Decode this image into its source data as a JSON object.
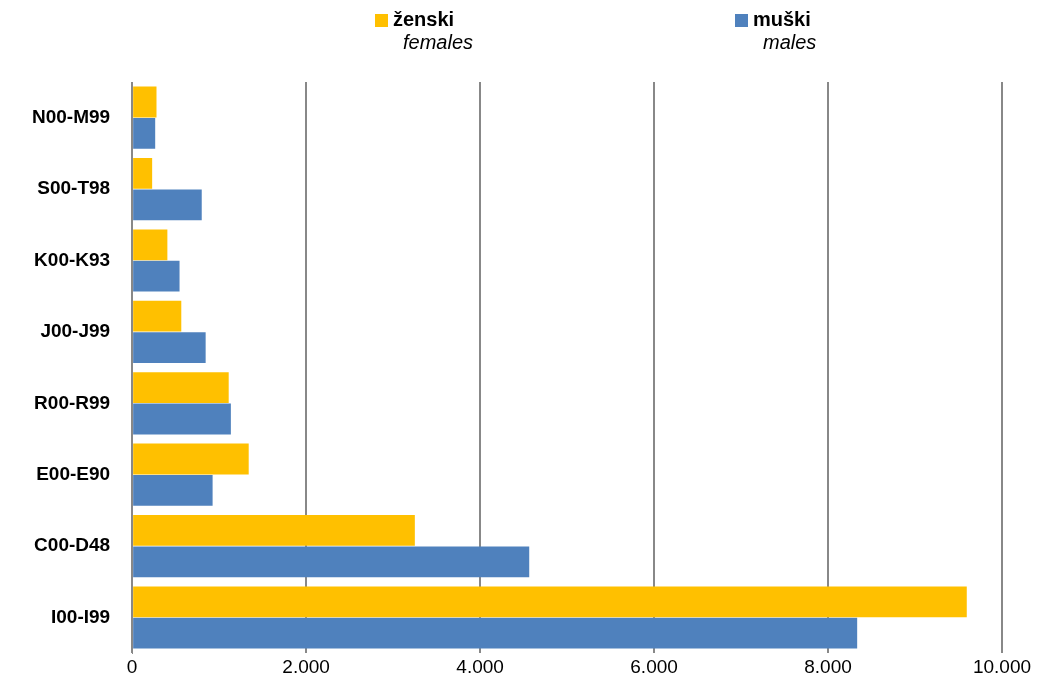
{
  "chart_data": {
    "type": "bar",
    "orientation": "horizontal",
    "categories": [
      "N00-M99",
      "S00-T98",
      "K00-K93",
      "J00-J99",
      "R00-R99",
      "E00-E90",
      "C00-D48",
      "I00-I99"
    ],
    "series": [
      {
        "name": "ženski\nfemales",
        "color": "#ffc000",
        "values": [
          280,
          230,
          405,
          565,
          1110,
          1340,
          3250,
          9595
        ]
      },
      {
        "name": "muški\nmales",
        "color": "#4f81bd",
        "values": [
          265,
          800,
          545,
          845,
          1135,
          925,
          4565,
          8335
        ]
      }
    ],
    "xlim": [
      0,
      10000
    ],
    "xticks": [
      0,
      {
        "value": 2000,
        "label": "2.000"
      },
      {
        "value": 4000,
        "label": "4.000"
      },
      {
        "value": 6000,
        "label": "6.000"
      },
      {
        "value": 8000,
        "label": "8.000"
      },
      {
        "value": 10000,
        "label": "10.000"
      }
    ],
    "grid": "x",
    "legend": "top"
  }
}
